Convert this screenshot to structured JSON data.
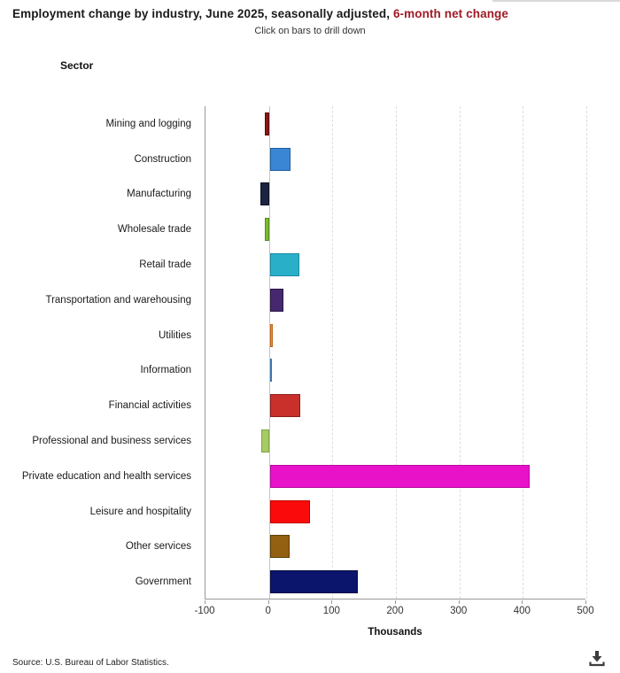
{
  "header": {
    "title_main": "Employment change by industry, June 2025, seasonally adjusted, ",
    "title_highlight": "6-month net change",
    "subtitle": "Click on bars to drill down",
    "axis_side_label": "Sector"
  },
  "chart_data": {
    "type": "bar",
    "orientation": "horizontal",
    "title": "Employment change by industry, June 2025, seasonally adjusted, 6-month net change",
    "xlabel": "Thousands",
    "ylabel": "Sector",
    "xlim": [
      -100,
      500
    ],
    "xticks": [
      -100,
      0,
      100,
      200,
      300,
      400,
      500
    ],
    "grid": "vertical dashed gridlines at 100-500, solid line at 0",
    "legend": "none",
    "categories": [
      "Mining and logging",
      "Construction",
      "Manufacturing",
      "Wholesale trade",
      "Retail trade",
      "Transportation and warehousing",
      "Utilities",
      "Information",
      "Financial activities",
      "Professional and business services",
      "Private education and health services",
      "Leisure and hospitality",
      "Other services",
      "Government"
    ],
    "values": [
      -6,
      33,
      -14,
      -6,
      46,
      21,
      5,
      3,
      48,
      -12,
      410,
      63,
      31,
      138
    ],
    "units": "thousands of jobs",
    "bar_colors": [
      "#8E1313",
      "#3A86D5",
      "#1A2440",
      "#7CBB2A",
      "#2AAFC8",
      "#46286E",
      "#EF8B32",
      "#5B9BD5",
      "#C9302C",
      "#A6CB65",
      "#E812C9",
      "#FA0A0A",
      "#935F10",
      "#0B156B"
    ],
    "bar_border_colors": [
      "#5A0C0C",
      "#215E9E",
      "#0A1226",
      "#578A1D",
      "#1A8CA3",
      "#2A1747",
      "#C06718",
      "#3E76AC",
      "#8A1F1D",
      "#7FA344",
      "#B50C9E",
      "#C00000",
      "#5F3D08",
      "#060D45"
    ],
    "highlight_color": "#9E1B24"
  },
  "footer": {
    "source": "Source: U.S. Bureau of Labor Statistics.",
    "download_icon": "download-icon"
  }
}
